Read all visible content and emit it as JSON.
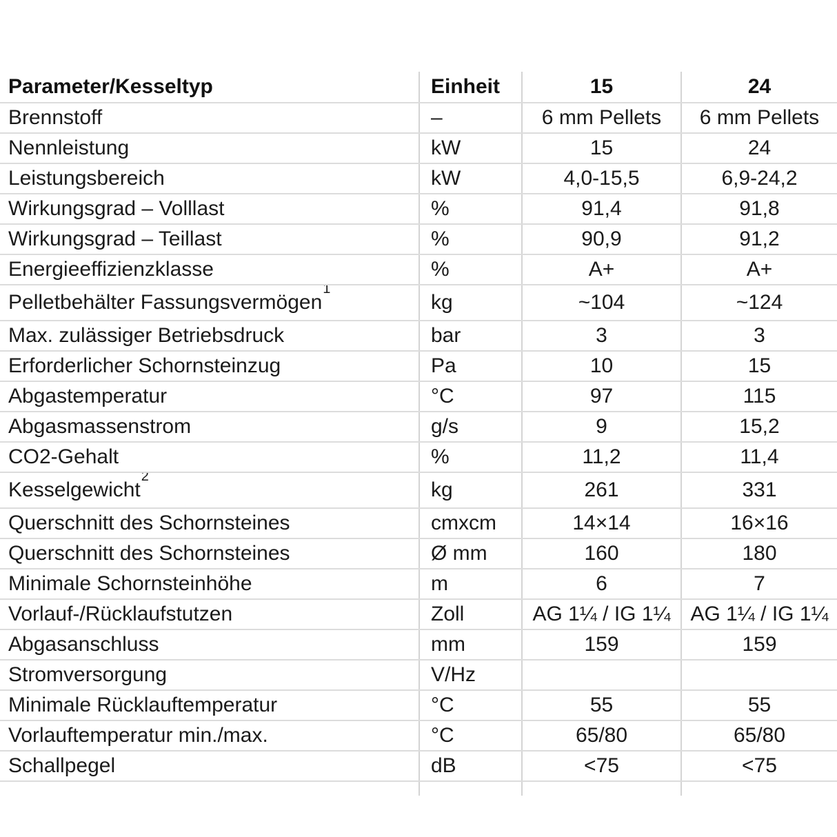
{
  "table": {
    "header": {
      "param": "Parameter/Kesseltyp",
      "unit": "Einheit",
      "col15": "15",
      "col24": "24"
    },
    "rows": [
      {
        "param": "Brennstoff",
        "sup": null,
        "unit": "–",
        "v15": "6 mm Pellets",
        "v24": "6 mm Pellets",
        "tall": false
      },
      {
        "param": "Nennleistung",
        "sup": null,
        "unit": "kW",
        "v15": "15",
        "v24": "24",
        "tall": false
      },
      {
        "param": "Leistungsbereich",
        "sup": null,
        "unit": "kW",
        "v15": "4,0-15,5",
        "v24": "6,9-24,2",
        "tall": false
      },
      {
        "param": "Wirkungsgrad – Volllast",
        "sup": null,
        "unit": "%",
        "v15": "91,4",
        "v24": "91,8",
        "tall": false
      },
      {
        "param": "Wirkungsgrad – Teillast",
        "sup": null,
        "unit": "%",
        "v15": "90,9",
        "v24": "91,2",
        "tall": false
      },
      {
        "param": "Energieeffizienzklasse",
        "sup": null,
        "unit": "%",
        "v15": "A+",
        "v24": "A+",
        "tall": false
      },
      {
        "param": "Pelletbehälter Fassungsvermögen",
        "sup": "1",
        "unit": "kg",
        "v15": "~104",
        "v24": "~124",
        "tall": true
      },
      {
        "param": "Max. zulässiger Betriebsdruck",
        "sup": null,
        "unit": "bar",
        "v15": "3",
        "v24": "3",
        "tall": false
      },
      {
        "param": "Erforderlicher Schornsteinzug",
        "sup": null,
        "unit": "Pa",
        "v15": "10",
        "v24": "15",
        "tall": false
      },
      {
        "param": "Abgastemperatur",
        "sup": null,
        "unit": "°C",
        "v15": "97",
        "v24": "115",
        "tall": false
      },
      {
        "param": "Abgasmassenstrom",
        "sup": null,
        "unit": "g/s",
        "v15": "9",
        "v24": "15,2",
        "tall": false
      },
      {
        "param": "CO2-Gehalt",
        "sup": null,
        "unit": "%",
        "v15": "11,2",
        "v24": "11,4",
        "tall": false
      },
      {
        "param": "Kesselgewicht",
        "sup": "2",
        "unit": "kg",
        "v15": "261",
        "v24": "331",
        "tall": true
      },
      {
        "param": "Querschnitt des Schornsteines",
        "sup": null,
        "unit": "cmxcm",
        "v15": "14×14",
        "v24": "16×16",
        "tall": false
      },
      {
        "param": "Querschnitt des Schornsteines",
        "sup": null,
        "unit": "Ø mm",
        "v15": "160",
        "v24": "180",
        "tall": false
      },
      {
        "param": "Minimale Schornsteinhöhe",
        "sup": null,
        "unit": "m",
        "v15": "6",
        "v24": "7",
        "tall": false
      },
      {
        "param": "Vorlauf-/Rücklaufstutzen",
        "sup": null,
        "unit": "Zoll",
        "v15": "AG 1¼ / IG 1¼",
        "v24": "AG 1¼ / IG 1¼",
        "tall": false
      },
      {
        "param": "Abgasanschluss",
        "sup": null,
        "unit": "mm",
        "v15": "159",
        "v24": "159",
        "tall": false
      },
      {
        "param": "Stromversorgung",
        "sup": null,
        "unit": "V/Hz",
        "v15": "",
        "v24": "",
        "tall": false
      },
      {
        "param": "Minimale Rücklauftemperatur",
        "sup": null,
        "unit": "°C",
        "v15": "55",
        "v24": "55",
        "tall": false
      },
      {
        "param": "Vorlauftemperatur min./max.",
        "sup": null,
        "unit": "°C",
        "v15": "65/80",
        "v24": "65/80",
        "tall": false
      },
      {
        "param": "Schallpegel",
        "sup": null,
        "unit": "dB",
        "v15": "<75",
        "v24": "<75",
        "tall": false
      }
    ]
  }
}
